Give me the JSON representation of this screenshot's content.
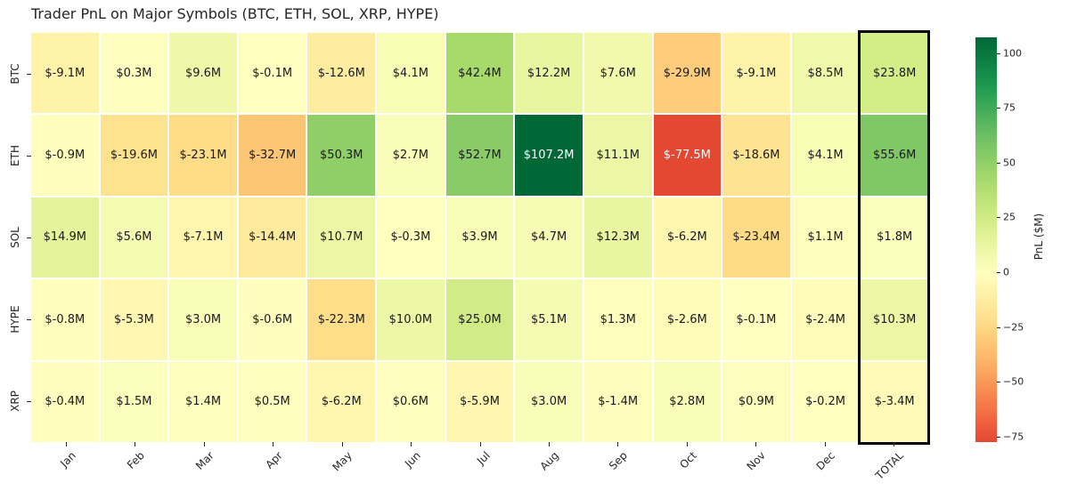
{
  "chart_data": {
    "type": "heatmap",
    "title": "Trader PnL on Major Symbols (BTC, ETH, SOL, XRP, HYPE)",
    "rows": [
      "BTC",
      "ETH",
      "SOL",
      "HYPE",
      "XRP"
    ],
    "columns": [
      "Jan",
      "Feb",
      "Mar",
      "Apr",
      "May",
      "Jun",
      "Jul",
      "Aug",
      "Sep",
      "Oct",
      "Nov",
      "Dec",
      "TOTAL"
    ],
    "values": [
      [
        -9.1,
        0.3,
        9.6,
        -0.1,
        -12.6,
        4.1,
        42.4,
        12.2,
        7.6,
        -29.9,
        -9.1,
        8.5,
        23.8
      ],
      [
        -0.9,
        -19.6,
        -23.1,
        -32.7,
        50.3,
        2.7,
        52.7,
        107.2,
        11.1,
        -77.5,
        -18.6,
        4.1,
        55.6
      ],
      [
        14.9,
        5.6,
        -7.1,
        -14.4,
        10.7,
        -0.3,
        3.9,
        4.7,
        12.3,
        -6.2,
        -23.4,
        1.1,
        1.8
      ],
      [
        -0.8,
        -5.3,
        3.0,
        -0.6,
        -22.3,
        10.0,
        25.0,
        5.1,
        1.3,
        -2.6,
        -0.1,
        -2.4,
        10.3
      ],
      [
        -0.4,
        1.5,
        1.4,
        0.5,
        -6.2,
        0.6,
        -5.9,
        3.0,
        -1.4,
        2.8,
        0.9,
        -0.2,
        -3.4
      ]
    ],
    "cell_format": {
      "prefix": "$",
      "suffix": "M",
      "decimals": 1
    },
    "color_scale": {
      "name": "RdYlGn",
      "center": 0,
      "vmin": -77.5,
      "vmax": 107.2,
      "stops": [
        "#a50026",
        "#d73027",
        "#f46d43",
        "#fdae61",
        "#fee08b",
        "#ffffbf",
        "#d9ef8b",
        "#a6d96a",
        "#66bd63",
        "#1a9850",
        "#006837"
      ]
    },
    "colorbar": {
      "label": "PnL ($M)",
      "ticks": [
        100,
        75,
        50,
        25,
        0,
        -25,
        -50,
        -75
      ]
    },
    "highlighted_column": "TOTAL",
    "grid_line_color": "#ffffff",
    "highlight_border_color": "#000000",
    "text_color_dark": "#1a1a1a",
    "text_color_light": "#ffffff",
    "legend_position": "right",
    "grid": "white-cell-separators"
  }
}
